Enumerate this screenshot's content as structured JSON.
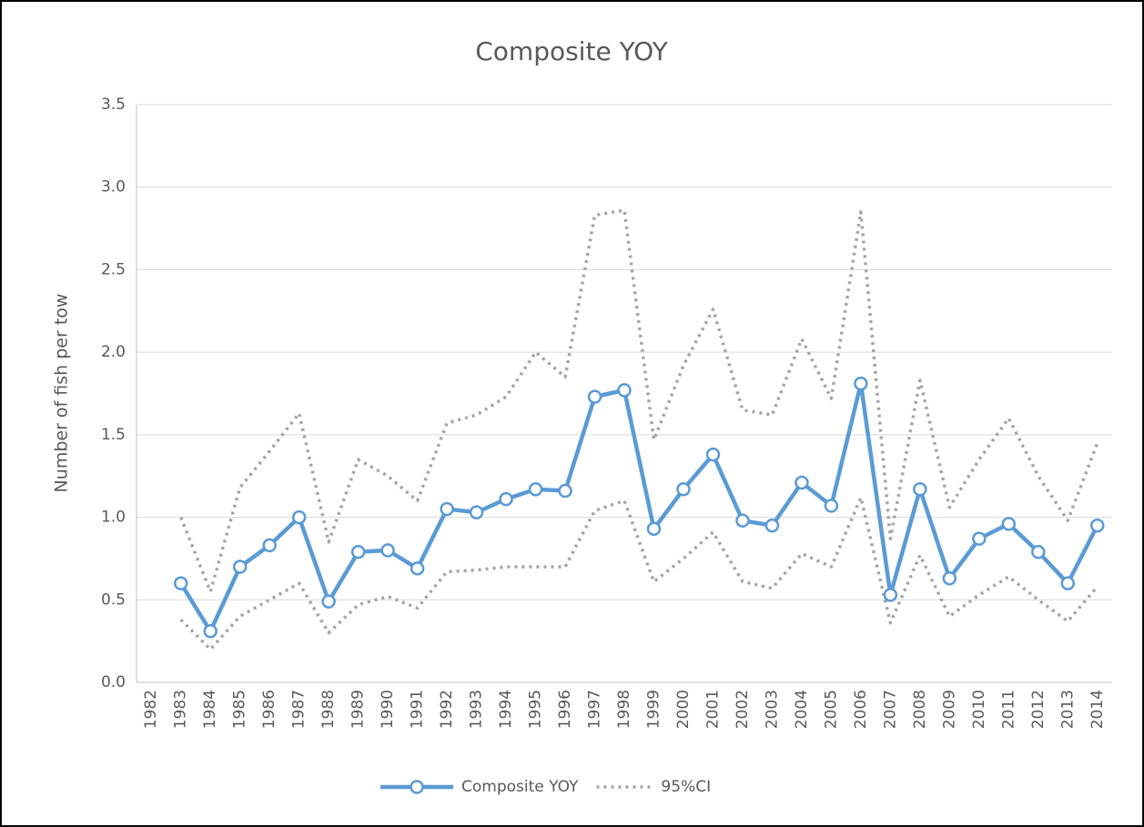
{
  "chart_data": {
    "type": "line",
    "title": "Composite YOY",
    "y_label": "Number of fish per tow",
    "categories": [
      "1982",
      "1983",
      "1984",
      "1985",
      "1986",
      "1987",
      "1988",
      "1989",
      "1990",
      "1991",
      "1992",
      "1993",
      "1994",
      "1995",
      "1996",
      "1997",
      "1998",
      "1999",
      "2000",
      "2001",
      "2002",
      "2003",
      "2004",
      "2005",
      "2006",
      "2007",
      "2008",
      "2009",
      "2010",
      "2011",
      "2012",
      "2013",
      "2014"
    ],
    "series": [
      {
        "name": "Composite YOY",
        "color": "#5b9bd5",
        "style": "solid",
        "markers": true,
        "values": [
          null,
          0.6,
          0.31,
          0.7,
          0.83,
          1.0,
          0.49,
          0.79,
          0.8,
          0.69,
          1.05,
          1.03,
          1.11,
          1.17,
          1.16,
          1.73,
          1.77,
          0.93,
          1.17,
          1.38,
          0.98,
          0.95,
          1.21,
          1.07,
          1.81,
          0.53,
          1.17,
          0.63,
          0.87,
          0.96,
          0.79,
          0.6,
          0.95
        ]
      },
      {
        "name": "95%CI",
        "color": "#a5a5a5",
        "style": "dotted",
        "markers": false,
        "values": [
          null,
          1.0,
          0.55,
          1.18,
          1.4,
          1.63,
          0.85,
          1.35,
          1.25,
          1.1,
          1.57,
          1.62,
          1.73,
          2.0,
          1.85,
          2.83,
          2.86,
          1.47,
          1.92,
          2.26,
          1.65,
          1.62,
          2.08,
          1.72,
          2.85,
          0.87,
          1.83,
          1.06,
          1.35,
          1.6,
          1.25,
          0.98,
          1.45
        ],
        "lower": [
          null,
          0.38,
          0.2,
          0.4,
          0.5,
          0.6,
          0.3,
          0.47,
          0.52,
          0.45,
          0.67,
          0.68,
          0.7,
          0.7,
          0.7,
          1.04,
          1.1,
          0.61,
          0.75,
          0.91,
          0.61,
          0.57,
          0.78,
          0.7,
          1.12,
          0.36,
          0.77,
          0.4,
          0.53,
          0.64,
          0.5,
          0.37,
          0.58
        ]
      }
    ],
    "ylim": [
      0,
      3.5
    ],
    "yticks": [
      {
        "value": 0,
        "label": "0.0"
      },
      {
        "value": 0.5,
        "label": "0.5"
      },
      {
        "value": 1,
        "label": "1.0"
      },
      {
        "value": 1.5,
        "label": "1.5"
      },
      {
        "value": 2,
        "label": "2.0"
      },
      {
        "value": 2.5,
        "label": "2.5"
      },
      {
        "value": 3,
        "label": "3.0"
      },
      {
        "value": 3.5,
        "label": "3.5"
      }
    ],
    "grid": true,
    "legend": "bottom"
  }
}
